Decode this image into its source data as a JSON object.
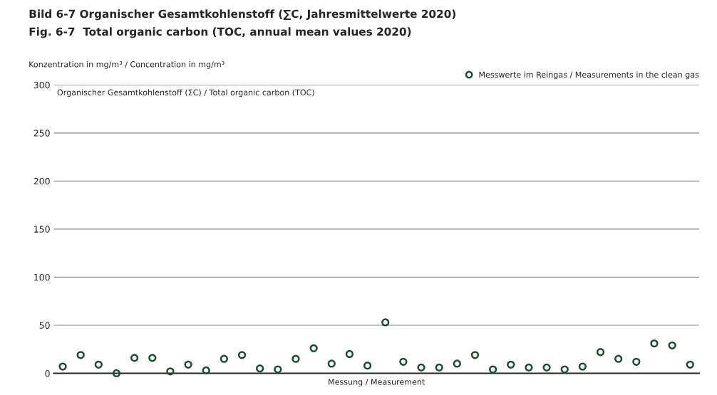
{
  "chart_data": {
    "type": "scatter",
    "title": "Bild 6-7 Organischer Gesamtkohlenstoff (∑C, Jahresmittelwerte 2020)",
    "subtitle": "Fig. 6-7  Total organic carbon (TOC, annual mean values 2020)",
    "ylabel": "Konzentration in mg/m³ / Concentration in mg/m³",
    "xlabel": "Messung / Measurement",
    "annotations": [
      "Organischer Gesamtkohlenstoff (ΣC) / Total organic carbon (TOC)"
    ],
    "categories": [
      null,
      null,
      null,
      null,
      null,
      null,
      null,
      null,
      null,
      null,
      null,
      null,
      null,
      null,
      null,
      null,
      null,
      null,
      null,
      null,
      null,
      null,
      null,
      null,
      null,
      null,
      null,
      null,
      null,
      null,
      null,
      null,
      null,
      null,
      null,
      null
    ],
    "series": [
      {
        "name": "Messwerte im Reingas / Measurements in the clean gas",
        "color": "#1a4d2e",
        "values": [
          7,
          19,
          9,
          0,
          16,
          16,
          2,
          9,
          3,
          15,
          19,
          5,
          4,
          15,
          26,
          10,
          20,
          8,
          53,
          12,
          6,
          6,
          10,
          19,
          4,
          9,
          6,
          6,
          4,
          7,
          22,
          15,
          12,
          31,
          29,
          9
        ]
      }
    ],
    "ylim": [
      0,
      300
    ],
    "yticks": [
      0,
      50,
      100,
      150,
      200,
      250,
      300
    ],
    "grid": "y",
    "legend": "top right",
    "marker": "circle"
  }
}
